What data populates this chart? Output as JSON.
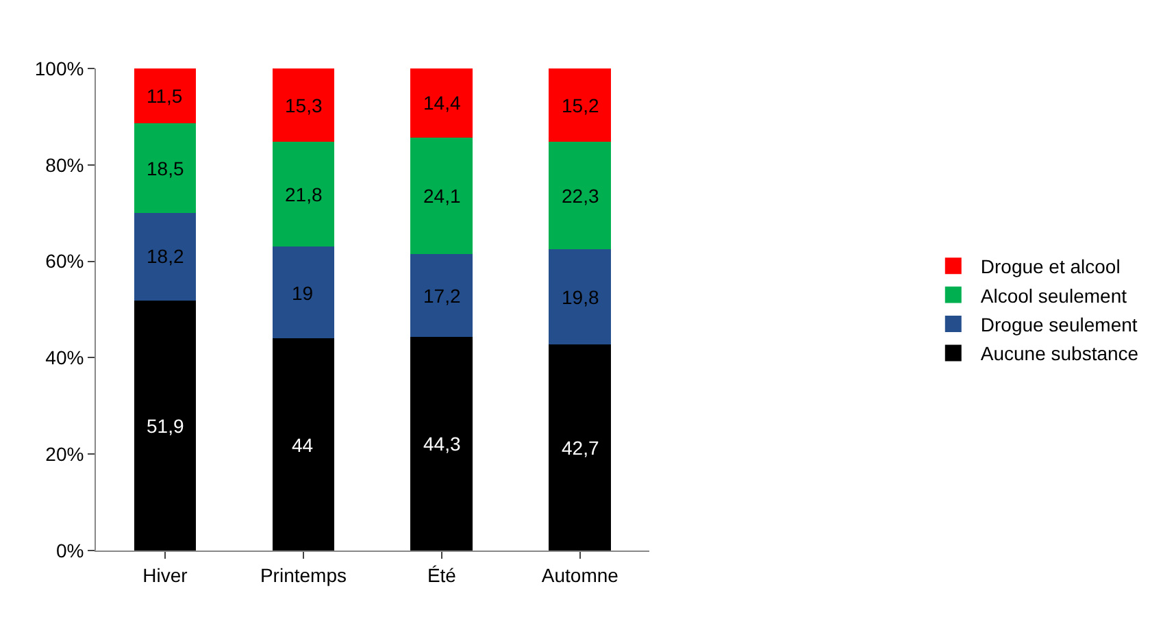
{
  "chart_data": {
    "type": "bar",
    "stacked": true,
    "categories": [
      "Hiver",
      "Printemps",
      "Été",
      "Automne"
    ],
    "series": [
      {
        "name": "Aucune substance",
        "color": "#000000",
        "values": [
          51.9,
          44,
          44.3,
          42.7
        ],
        "value_labels": [
          "51,9",
          "44",
          "44,3",
          "42,7"
        ]
      },
      {
        "name": "Drogue seulement",
        "color": "#254e8c",
        "values": [
          18.2,
          19,
          17.2,
          19.8
        ],
        "value_labels": [
          "18,2",
          "19",
          "17,2",
          "19,8"
        ]
      },
      {
        "name": "Alcool seulement",
        "color": "#00b050",
        "values": [
          18.5,
          21.8,
          24.1,
          22.3
        ],
        "value_labels": [
          "18,5",
          "21,8",
          "24,1",
          "22,3"
        ]
      },
      {
        "name": "Drogue et alcool",
        "color": "#ff0000",
        "values": [
          11.5,
          15.3,
          14.4,
          15.2
        ],
        "value_labels": [
          "11,5",
          "15,3",
          "14,4",
          "15,2"
        ]
      }
    ],
    "ylim": [
      0,
      100
    ],
    "yticks": [
      {
        "value": 0,
        "label": "0%"
      },
      {
        "value": 20,
        "label": "20%"
      },
      {
        "value": 40,
        "label": "40%"
      },
      {
        "value": 60,
        "label": "60%"
      },
      {
        "value": 80,
        "label": "80%"
      },
      {
        "value": 100,
        "label": "100%"
      }
    ],
    "grid": false,
    "legend": "right"
  }
}
